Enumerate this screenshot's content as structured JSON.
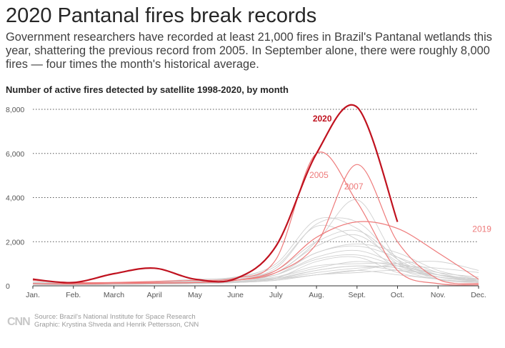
{
  "header": {
    "title": "2020 Pantanal fires break records",
    "subtitle": "Government researchers have recorded at least 21,000 fires in Brazil's Pantanal wetlands this year, shattering the previous record from 2005. In September alone, there were roughly 8,000 fires — four times the month's historical average.",
    "chart_label": "Number of active fires detected by satellite 1998-2020, by month"
  },
  "footer": {
    "source": "Source: Brazil's National Institute for Space Research",
    "graphic": "Graphic: Krystina Shveda and Henrik Pettersson, CNN",
    "logo_text": "CNN"
  },
  "colors": {
    "highlight": "#c0121f",
    "secondary": "#ee7a7a",
    "background_lines": "#d0d0d0",
    "gridline": "#555555"
  },
  "chart_data": {
    "type": "line",
    "title": "Number of active fires detected by satellite 1998-2020, by month",
    "xlabel": "",
    "ylabel": "",
    "x": [
      "Jan.",
      "Feb.",
      "March",
      "April",
      "May",
      "June",
      "July",
      "Aug.",
      "Sept.",
      "Oct.",
      "Nov.",
      "Dec."
    ],
    "ylim": [
      0,
      8000
    ],
    "yticks": [
      0,
      2000,
      4000,
      6000,
      8000
    ],
    "ytick_labels": [
      "0",
      "2,000",
      "4,000",
      "6,000",
      "8,000"
    ],
    "grid": true,
    "highlight_series": [
      {
        "name": "2020",
        "label": "2020",
        "style": "highlight",
        "values": [
          300,
          150,
          550,
          800,
          300,
          320,
          1800,
          6000,
          8100,
          2900,
          null,
          null
        ]
      }
    ],
    "labeled_series": [
      {
        "name": "2005",
        "label": "2005",
        "style": "secondary",
        "values": [
          100,
          100,
          150,
          200,
          250,
          350,
          1200,
          6000,
          3800,
          700,
          100,
          50
        ]
      },
      {
        "name": "2007",
        "label": "2007",
        "style": "secondary",
        "values": [
          100,
          80,
          100,
          120,
          150,
          250,
          600,
          1900,
          5500,
          2000,
          300,
          100
        ]
      },
      {
        "name": "2019",
        "label": "2019",
        "style": "secondary",
        "values": [
          250,
          150,
          150,
          150,
          150,
          250,
          700,
          2200,
          2900,
          2600,
          1500,
          300
        ]
      }
    ],
    "background_series": [
      {
        "name": "1998",
        "values": [
          200,
          120,
          100,
          150,
          180,
          250,
          600,
          1800,
          2300,
          1100,
          400,
          250
        ]
      },
      {
        "name": "1999",
        "values": [
          150,
          100,
          120,
          160,
          220,
          380,
          900,
          2700,
          2100,
          800,
          300,
          200
        ]
      },
      {
        "name": "2000",
        "values": [
          100,
          80,
          100,
          120,
          160,
          250,
          500,
          1200,
          1400,
          900,
          400,
          200
        ]
      },
      {
        "name": "2001",
        "values": [
          120,
          100,
          120,
          150,
          200,
          300,
          700,
          2000,
          2500,
          1300,
          500,
          250
        ]
      },
      {
        "name": "2002",
        "values": [
          150,
          120,
          150,
          200,
          300,
          400,
          1000,
          3000,
          2600,
          1000,
          400,
          300
        ]
      },
      {
        "name": "2003",
        "values": [
          100,
          80,
          100,
          120,
          180,
          300,
          600,
          1500,
          1900,
          1500,
          700,
          300
        ]
      },
      {
        "name": "2004",
        "values": [
          130,
          100,
          120,
          150,
          220,
          350,
          800,
          2800,
          2900,
          1200,
          500,
          250
        ]
      },
      {
        "name": "2006",
        "values": [
          100,
          80,
          100,
          120,
          150,
          200,
          400,
          800,
          1100,
          900,
          500,
          300
        ]
      },
      {
        "name": "2008",
        "values": [
          80,
          60,
          80,
          100,
          130,
          200,
          350,
          700,
          900,
          700,
          400,
          200
        ]
      },
      {
        "name": "2009",
        "values": [
          60,
          50,
          60,
          80,
          100,
          150,
          250,
          500,
          700,
          1000,
          1100,
          700
        ]
      },
      {
        "name": "2010",
        "values": [
          80,
          60,
          80,
          100,
          150,
          250,
          600,
          2000,
          3900,
          1200,
          300,
          150
        ]
      },
      {
        "name": "2011",
        "values": [
          60,
          50,
          70,
          90,
          120,
          180,
          350,
          1100,
          1300,
          600,
          300,
          150
        ]
      },
      {
        "name": "2012",
        "values": [
          80,
          60,
          80,
          100,
          150,
          250,
          500,
          1500,
          1800,
          1300,
          600,
          200
        ]
      },
      {
        "name": "2013",
        "values": [
          60,
          50,
          60,
          80,
          100,
          150,
          300,
          700,
          900,
          800,
          400,
          200
        ]
      },
      {
        "name": "2014",
        "values": [
          60,
          50,
          60,
          80,
          100,
          150,
          250,
          500,
          600,
          700,
          500,
          300
        ]
      },
      {
        "name": "2015",
        "values": [
          80,
          60,
          80,
          100,
          120,
          180,
          300,
          600,
          800,
          900,
          800,
          600
        ]
      },
      {
        "name": "2016",
        "values": [
          100,
          80,
          100,
          120,
          150,
          200,
          400,
          900,
          1000,
          1000,
          600,
          400
        ]
      },
      {
        "name": "2017",
        "values": [
          80,
          60,
          80,
          100,
          150,
          250,
          500,
          1300,
          1600,
          1000,
          500,
          300
        ]
      },
      {
        "name": "2018",
        "values": [
          60,
          50,
          60,
          80,
          100,
          150,
          300,
          500,
          700,
          500,
          300,
          150
        ]
      }
    ],
    "annotations": [
      {
        "text": "2020",
        "series": "2020"
      },
      {
        "text": "2005",
        "series": "2005"
      },
      {
        "text": "2007",
        "series": "2007"
      },
      {
        "text": "2019",
        "series": "2019"
      }
    ]
  }
}
